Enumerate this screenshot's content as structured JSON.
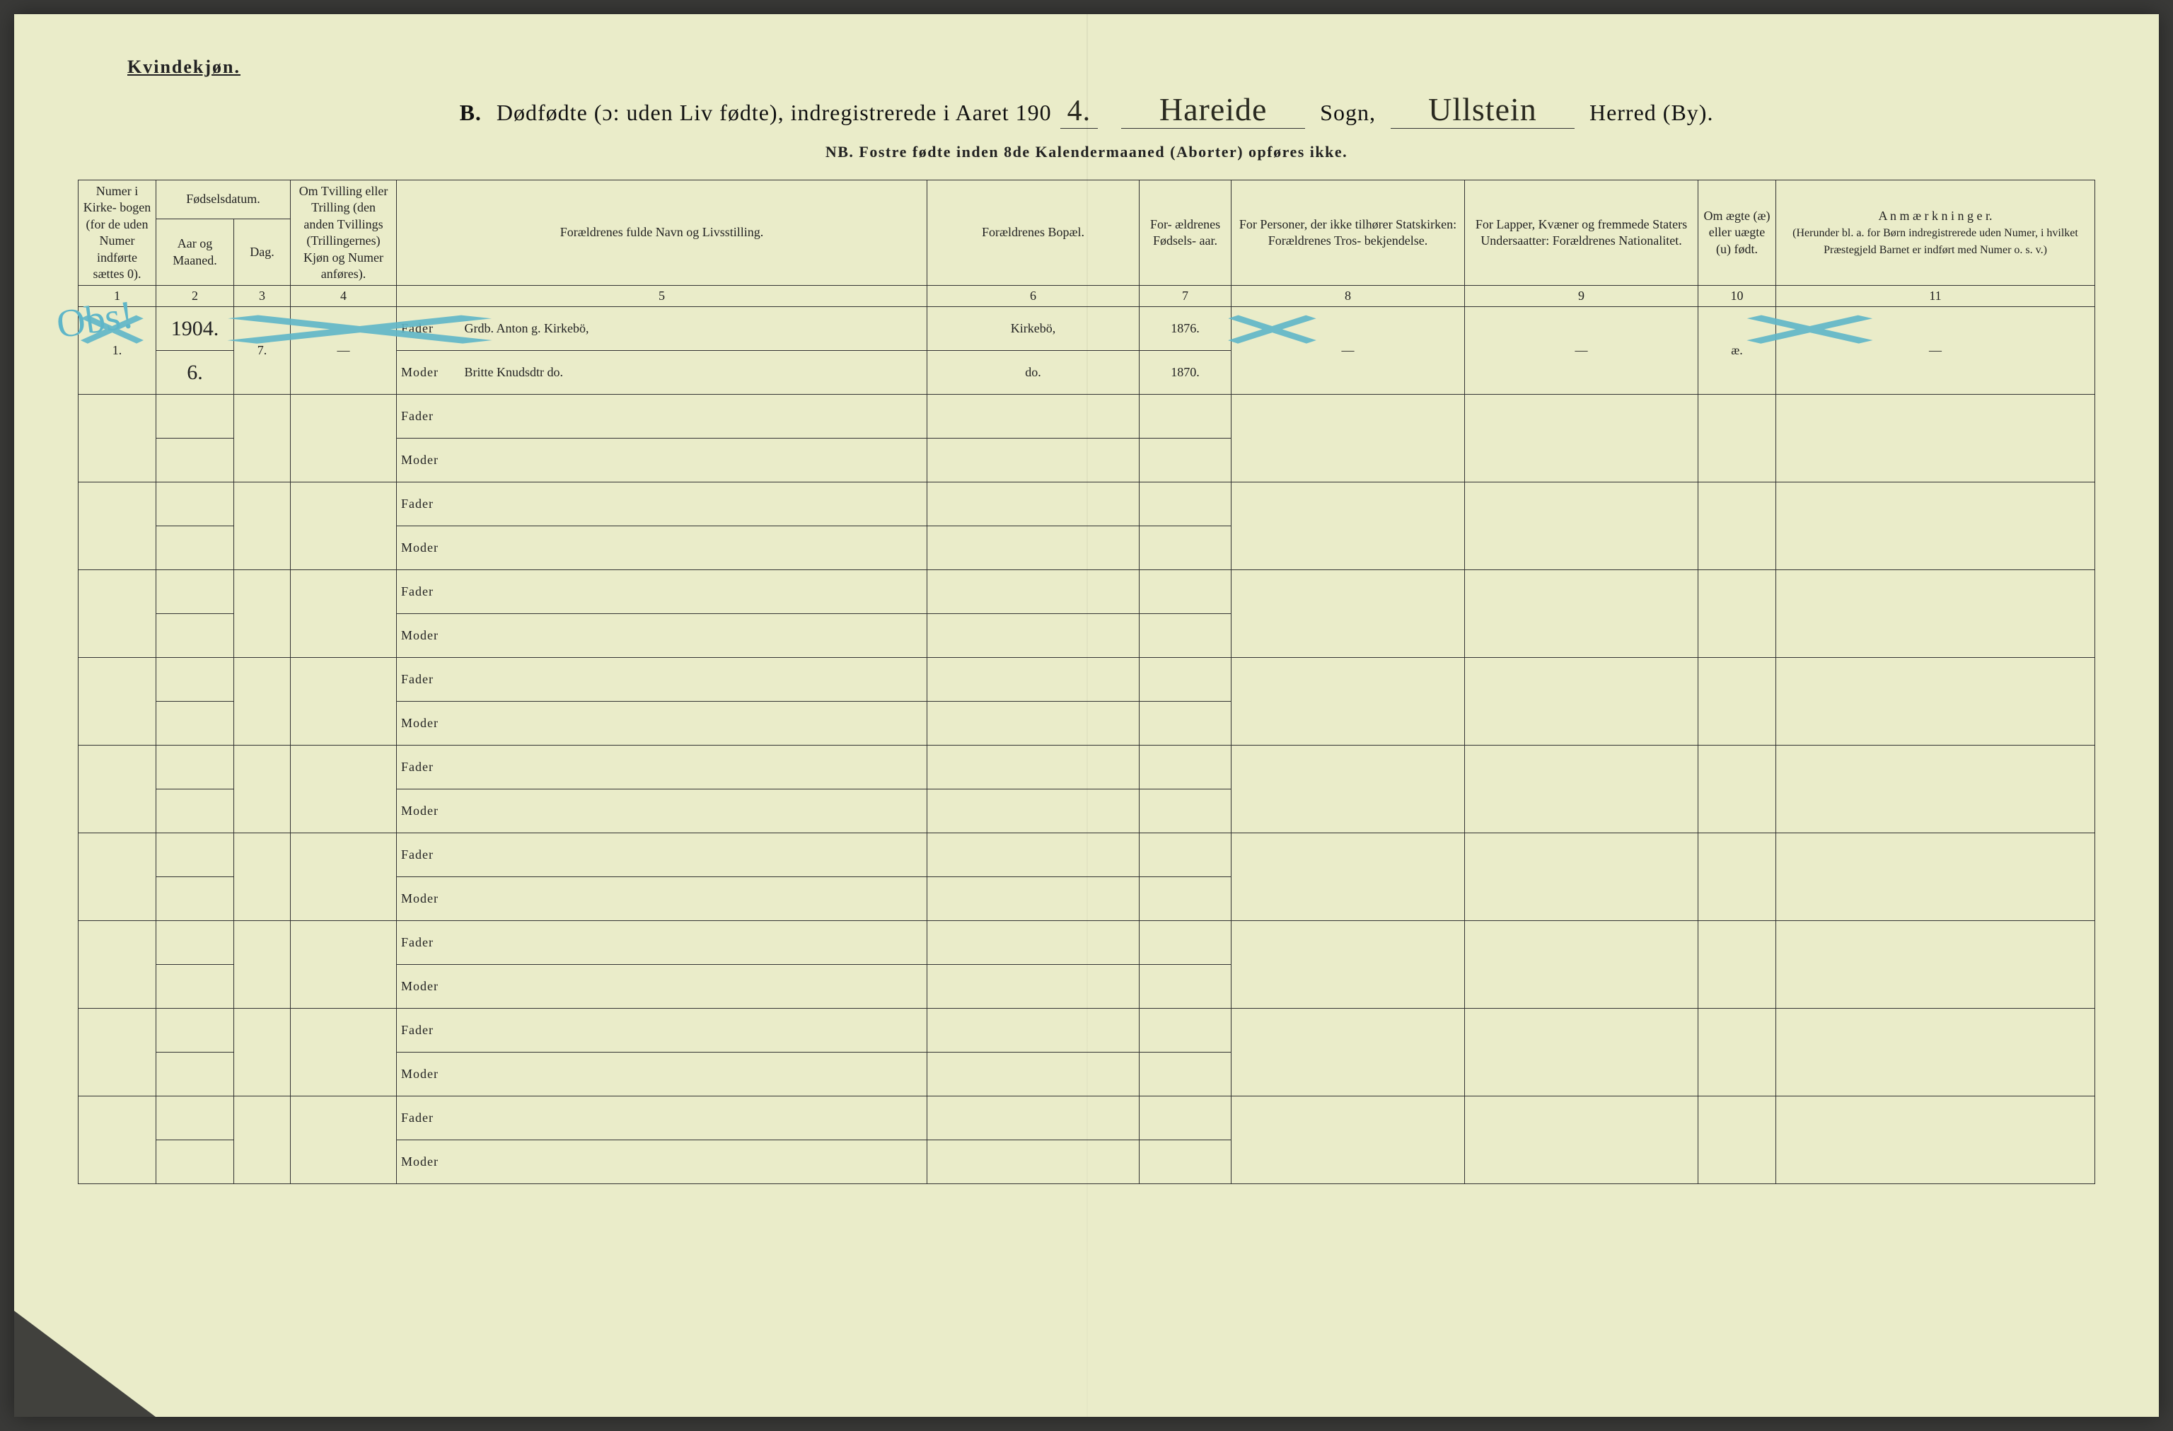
{
  "page": {
    "gender_heading": "Kvindekjøn.",
    "title_letter": "B.",
    "title_text_a": "Dødfødte (ɔ: uden Liv fødte), indregistrerede i Aaret 190",
    "year_suffix": "4.",
    "sogn_value": "Hareide",
    "sogn_label": "Sogn,",
    "herred_value": "Ullstein",
    "herred_label": "Herred (By).",
    "subtitle": "NB.  Fostre fødte inden 8de Kalendermaaned (Aborter) opføres ikke."
  },
  "headers": {
    "c1": "Numer i Kirke- bogen (for de uden Numer indførte sættes 0).",
    "c2a": "Fødselsdatum.",
    "c2b": "Aar og Maaned.",
    "c2c": "Dag.",
    "c3": "Om Tvilling eller Trilling (den anden Tvillings (Trillingernes) Kjøn og Numer anføres).",
    "c5": "Forældrenes fulde Navn og Livsstilling.",
    "c6": "Forældrenes Bopæl.",
    "c7": "For- ældrenes Fødsels- aar.",
    "c8": "For Personer, der ikke tilhører Statskirken: Forældrenes Tros- bekjendelse.",
    "c9": "For Lapper, Kvæner og fremmede Staters Undersaatter: Forældrenes Nationalitet.",
    "c10": "Om ægte (æ) eller uægte (u) født.",
    "c11": "A n m æ r k n i n g e r.",
    "c11b": "(Herunder bl. a. for Børn indregistrerede uden Numer, i hvilket Præstegjeld Barnet er indført med Numer o. s. v.)"
  },
  "colnums": {
    "n1": "1",
    "n2": "2",
    "n3": "3",
    "n4": "4",
    "n5": "5",
    "n6": "6",
    "n7": "7",
    "n8": "8",
    "n9": "9",
    "n10": "10",
    "n11": "11"
  },
  "row_labels": {
    "fader": "Fader",
    "moder": "Moder"
  },
  "entry1": {
    "num": "1.",
    "aar": "1904.",
    "maaned": "6.",
    "dag": "7.",
    "tvilling": "—",
    "fader_name": "Grdb. Anton g. Kirkebö,",
    "moder_name": "Britte Knudsdtr  do.",
    "fader_bopael": "Kirkebö,",
    "moder_bopael": "do.",
    "fader_aar": "1876.",
    "moder_aar": "1870.",
    "c8": "—",
    "c9": "—",
    "aegte": "æ.",
    "c11": "—"
  },
  "marks": {
    "obs": "Obs!"
  },
  "style": {
    "paper_bg": "#eaecc9",
    "ink": "#222222",
    "pencil_blue": "#5fb6c8",
    "handwriting_ink": "#2a2a20"
  }
}
